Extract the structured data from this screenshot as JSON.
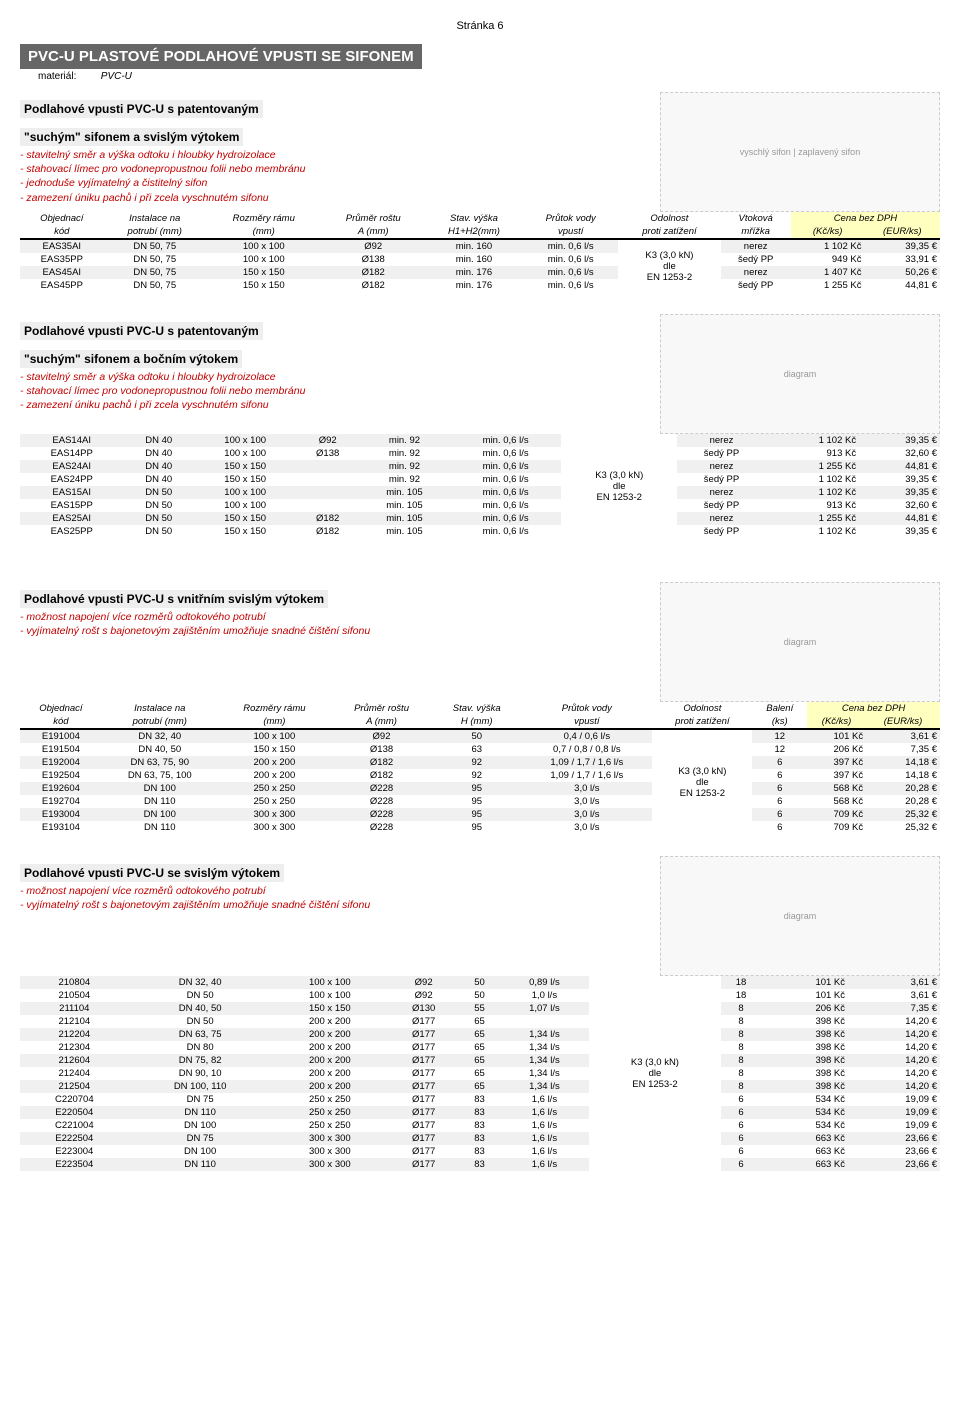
{
  "page_number": "Stránka 6",
  "main_title": "PVC-U PLASTOVÉ PODLAHOVÉ VPUSTI SE SIFONEM",
  "material_label": "materiál:",
  "material_value": "PVC-U",
  "table_header1": {
    "c0": "Objednací",
    "c0b": "kód",
    "c1": "Instalace na",
    "c1b": "potrubí (mm)",
    "c2": "Rozměry rámu",
    "c2b": "(mm)",
    "c3": "Průměr roštu",
    "c3b": "A (mm)",
    "c4": "Stav. výška",
    "c4b": "H1+H2(mm)",
    "c5": "Průtok vody",
    "c5b": "vpustí",
    "c6": "Odolnost",
    "c6b": "proti zatížení",
    "c7": "Vtoková",
    "c7b": "mřížka",
    "price": "Cena bez DPH",
    "c8": "(Kč/ks)",
    "c9": "(EUR/ks)"
  },
  "table_header3": {
    "c4": "Stav. výška",
    "c4b": "H (mm)",
    "c7": "Balení",
    "c7b": "(ks)"
  },
  "section1": {
    "heading_l1": "Podlahové vpusti PVC-U s patentovaným",
    "heading_l2": "\"suchým\" sifonem a svislým výtokem",
    "features": [
      "- stavitelný směr a výška odtoku i hloubky hydroizolace",
      "- stahovací límec pro vodonepropustnou folii nebo membránu",
      "- jednoduše vyjímatelný a čistitelný sifon",
      "- zamezení úniku pachů i při zcela vyschnutém sifonu"
    ],
    "diagram_labels": {
      "l": "vyschlý sifon",
      "r": "zaplavený sifon"
    },
    "odolnost": [
      "K3 (3,0 kN)",
      "dle",
      "EN 1253-2"
    ],
    "rows": [
      {
        "k": "EAS35AI",
        "p": "DN 50, 75",
        "r": "100 x 100",
        "a": "Ø92",
        "h": "min. 160",
        "f": "min. 0,6 l/s",
        "m": "nerez",
        "kc": "1 102 Kč",
        "eu": "39,35 €"
      },
      {
        "k": "EAS35PP",
        "p": "DN 50, 75",
        "r": "100 x 100",
        "a": "Ø138",
        "h": "min. 160",
        "f": "min. 0,6 l/s",
        "m": "šedý PP",
        "kc": "949 Kč",
        "eu": "33,91 €"
      },
      {
        "k": "EAS45AI",
        "p": "DN 50, 75",
        "r": "150 x 150",
        "a": "Ø182",
        "h": "min. 176",
        "f": "min. 0,6 l/s",
        "m": "nerez",
        "kc": "1 407 Kč",
        "eu": "50,26 €"
      },
      {
        "k": "EAS45PP",
        "p": "DN 50, 75",
        "r": "150 x 150",
        "a": "Ø182",
        "h": "min. 176",
        "f": "min. 0,6 l/s",
        "m": "šedý PP",
        "kc": "1 255 Kč",
        "eu": "44,81 €"
      }
    ]
  },
  "section2": {
    "heading_l1": "Podlahové vpusti PVC-U s patentovaným",
    "heading_l2": "\"suchým\" sifonem a bočním výtokem",
    "features": [
      "- stavitelný směr a výška odtoku i hloubky hydroizolace",
      "- stahovací límec pro vodonepropustnou folii nebo membránu",
      "- zamezení úniku pachů i při zcela vyschnutém sifonu"
    ],
    "odolnost": [
      "K3 (3,0 kN)",
      "dle",
      "EN 1253-2"
    ],
    "rows": [
      {
        "k": "EAS14AI",
        "p": "DN 40",
        "r": "100 x 100",
        "a": "Ø92",
        "h": "min. 92",
        "f": "min. 0,6 l/s",
        "m": "nerez",
        "kc": "1 102 Kč",
        "eu": "39,35 €"
      },
      {
        "k": "EAS14PP",
        "p": "DN 40",
        "r": "100 x 100",
        "a": "Ø138",
        "h": "min. 92",
        "f": "min. 0,6 l/s",
        "m": "šedý PP",
        "kc": "913 Kč",
        "eu": "32,60 €"
      },
      {
        "k": "EAS24AI",
        "p": "DN 40",
        "r": "150 x 150",
        "a": "",
        "h": "min. 92",
        "f": "min. 0,6 l/s",
        "m": "nerez",
        "kc": "1 255 Kč",
        "eu": "44,81 €"
      },
      {
        "k": "EAS24PP",
        "p": "DN 40",
        "r": "150 x 150",
        "a": "",
        "h": "min. 92",
        "f": "min. 0,6 l/s",
        "m": "šedý PP",
        "kc": "1 102 Kč",
        "eu": "39,35 €"
      },
      {
        "k": "EAS15AI",
        "p": "DN 50",
        "r": "100 x 100",
        "a": "",
        "h": "min. 105",
        "f": "min. 0,6 l/s",
        "m": "nerez",
        "kc": "1 102 Kč",
        "eu": "39,35 €"
      },
      {
        "k": "EAS15PP",
        "p": "DN 50",
        "r": "100 x 100",
        "a": "",
        "h": "min. 105",
        "f": "min. 0,6 l/s",
        "m": "šedý PP",
        "kc": "913 Kč",
        "eu": "32,60 €"
      },
      {
        "k": "EAS25AI",
        "p": "DN 50",
        "r": "150 x 150",
        "a": "Ø182",
        "h": "min. 105",
        "f": "min. 0,6 l/s",
        "m": "nerez",
        "kc": "1 255 Kč",
        "eu": "44,81 €"
      },
      {
        "k": "EAS25PP",
        "p": "DN 50",
        "r": "150 x 150",
        "a": "Ø182",
        "h": "min. 105",
        "f": "min. 0,6 l/s",
        "m": "šedý PP",
        "kc": "1 102 Kč",
        "eu": "39,35 €"
      }
    ]
  },
  "section3": {
    "heading": "Podlahové vpusti PVC-U s vnitřním svislým výtokem",
    "features": [
      "- možnost napojení více rozměrů odtokového potrubí",
      "- vyjímatelný rošt s bajonetovým zajištěním umožňuje snadné čištění sifonu"
    ],
    "odolnost": [
      "K3 (3,0 kN)",
      "dle",
      "EN 1253-2"
    ],
    "rows": [
      {
        "k": "E191004",
        "p": "DN 32, 40",
        "r": "100 x 100",
        "a": "Ø92",
        "h": "50",
        "f": "0,4 / 0,6 l/s",
        "b": "12",
        "kc": "101 Kč",
        "eu": "3,61 €"
      },
      {
        "k": "E191504",
        "p": "DN 40, 50",
        "r": "150 x 150",
        "a": "Ø138",
        "h": "63",
        "f": "0,7 / 0,8 / 0,8 l/s",
        "b": "12",
        "kc": "206 Kč",
        "eu": "7,35 €"
      },
      {
        "k": "E192004",
        "p": "DN 63, 75, 90",
        "r": "200 x 200",
        "a": "Ø182",
        "h": "92",
        "f": "1,09 / 1,7 / 1,6 l/s",
        "b": "6",
        "kc": "397 Kč",
        "eu": "14,18 €"
      },
      {
        "k": "E192504",
        "p": "DN 63, 75, 100",
        "r": "200 x 200",
        "a": "Ø182",
        "h": "92",
        "f": "1,09 / 1,7 / 1,6 l/s",
        "b": "6",
        "kc": "397 Kč",
        "eu": "14,18 €"
      },
      {
        "k": "E192604",
        "p": "DN 100",
        "r": "250 x 250",
        "a": "Ø228",
        "h": "95",
        "f": "3,0 l/s",
        "b": "6",
        "kc": "568 Kč",
        "eu": "20,28 €"
      },
      {
        "k": "E192704",
        "p": "DN 110",
        "r": "250 x 250",
        "a": "Ø228",
        "h": "95",
        "f": "3,0 l/s",
        "b": "6",
        "kc": "568 Kč",
        "eu": "20,28 €"
      },
      {
        "k": "E193004",
        "p": "DN 100",
        "r": "300 x 300",
        "a": "Ø228",
        "h": "95",
        "f": "3,0 l/s",
        "b": "6",
        "kc": "709 Kč",
        "eu": "25,32 €"
      },
      {
        "k": "E193104",
        "p": "DN 110",
        "r": "300 x 300",
        "a": "Ø228",
        "h": "95",
        "f": "3,0 l/s",
        "b": "6",
        "kc": "709 Kč",
        "eu": "25,32 €"
      }
    ]
  },
  "section4": {
    "heading": "Podlahové vpusti PVC-U se svislým výtokem",
    "features": [
      "- možnost napojení více rozměrů odtokového potrubí",
      "- vyjímatelný rošt s bajonetovým zajištěním umožňuje snadné čištění sifonu"
    ],
    "odolnost": [
      "K3 (3,0 kN)",
      "dle",
      "EN 1253-2"
    ],
    "rows": [
      {
        "k": "210804",
        "p": "DN 32, 40",
        "r": "100 x 100",
        "a": "Ø92",
        "h": "50",
        "f": "0,89 l/s",
        "b": "18",
        "kc": "101 Kč",
        "eu": "3,61 €"
      },
      {
        "k": "210504",
        "p": "DN 50",
        "r": "100 x 100",
        "a": "Ø92",
        "h": "50",
        "f": "1,0 l/s",
        "b": "18",
        "kc": "101 Kč",
        "eu": "3,61 €"
      },
      {
        "k": "211104",
        "p": "DN 40, 50",
        "r": "150 x 150",
        "a": "Ø130",
        "h": "55",
        "f": "1,07 l/s",
        "b": "8",
        "kc": "206 Kč",
        "eu": "7,35 €"
      },
      {
        "k": "212104",
        "p": "DN 50",
        "r": "200 x 200",
        "a": "Ø177",
        "h": "65",
        "f": "",
        "b": "8",
        "kc": "398 Kč",
        "eu": "14,20 €"
      },
      {
        "k": "212204",
        "p": "DN 63, 75",
        "r": "200 x 200",
        "a": "Ø177",
        "h": "65",
        "f": "1,34 l/s",
        "b": "8",
        "kc": "398 Kč",
        "eu": "14,20 €"
      },
      {
        "k": "212304",
        "p": "DN 80",
        "r": "200 x 200",
        "a": "Ø177",
        "h": "65",
        "f": "1,34 l/s",
        "b": "8",
        "kc": "398 Kč",
        "eu": "14,20 €"
      },
      {
        "k": "212604",
        "p": "DN 75, 82",
        "r": "200 x 200",
        "a": "Ø177",
        "h": "65",
        "f": "1,34 l/s",
        "b": "8",
        "kc": "398 Kč",
        "eu": "14,20 €"
      },
      {
        "k": "212404",
        "p": "DN 90, 10",
        "r": "200 x 200",
        "a": "Ø177",
        "h": "65",
        "f": "1,34 l/s",
        "b": "8",
        "kc": "398 Kč",
        "eu": "14,20 €"
      },
      {
        "k": "212504",
        "p": "DN 100, 110",
        "r": "200 x 200",
        "a": "Ø177",
        "h": "65",
        "f": "1,34 l/s",
        "b": "8",
        "kc": "398 Kč",
        "eu": "14,20 €"
      },
      {
        "k": "C220704",
        "p": "DN 75",
        "r": "250 x 250",
        "a": "Ø177",
        "h": "83",
        "f": "1,6 l/s",
        "b": "6",
        "kc": "534 Kč",
        "eu": "19,09 €"
      },
      {
        "k": "E220504",
        "p": "DN 110",
        "r": "250 x 250",
        "a": "Ø177",
        "h": "83",
        "f": "1,6 l/s",
        "b": "6",
        "kc": "534 Kč",
        "eu": "19,09 €"
      },
      {
        "k": "C221004",
        "p": "DN 100",
        "r": "250 x 250",
        "a": "Ø177",
        "h": "83",
        "f": "1,6 l/s",
        "b": "6",
        "kc": "534 Kč",
        "eu": "19,09 €"
      },
      {
        "k": "E222504",
        "p": "DN 75",
        "r": "300 x 300",
        "a": "Ø177",
        "h": "83",
        "f": "1,6 l/s",
        "b": "6",
        "kc": "663 Kč",
        "eu": "23,66 €"
      },
      {
        "k": "E223004",
        "p": "DN 100",
        "r": "300 x 300",
        "a": "Ø177",
        "h": "83",
        "f": "1,6 l/s",
        "b": "6",
        "kc": "663 Kč",
        "eu": "23,66 €"
      },
      {
        "k": "E223504",
        "p": "DN 110",
        "r": "300 x 300",
        "a": "Ø177",
        "h": "83",
        "f": "1,6 l/s",
        "b": "6",
        "kc": "663 Kč",
        "eu": "23,66 €"
      }
    ]
  },
  "colors": {
    "title_bg": "#666666",
    "feature_text": "#c00000",
    "price_head_bg": "#ffffc0",
    "row_alt_bg": "#f0f0f0"
  }
}
